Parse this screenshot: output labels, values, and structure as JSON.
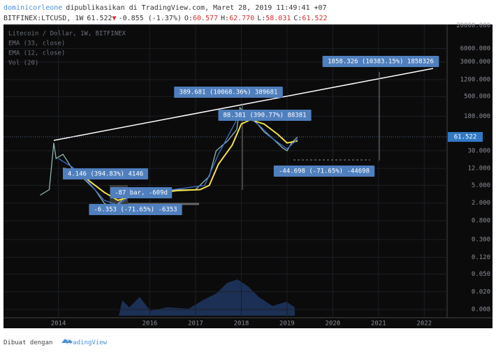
{
  "header": {
    "author": "dominicorleone",
    "published": "dipublikasikan di TradingView.com, Maret 28, 2019 11:49:41 +07",
    "symbol": "BITFINEX:LTCUSD, 1W",
    "last": "61.522",
    "arrow": "▼",
    "change": "-0.855 (-1.37%)",
    "ohlc": [
      {
        "label": "O:",
        "value": "60.577"
      },
      {
        "label": "H:",
        "value": "62.770"
      },
      {
        "label": "L:",
        "value": "58.031"
      },
      {
        "label": "C:",
        "value": "61.522"
      }
    ]
  },
  "footer": {
    "text": "Dibuat dengan",
    "brand": "TradingView"
  },
  "chart_data": {
    "type": "line",
    "log_scale": true,
    "grid": true,
    "volume_label": "Vol (20)",
    "last_price": {
      "value": 61.522,
      "label": "61.522"
    },
    "series": [
      {
        "name": "Litecoin / Dollar, 1W, BITFINEX",
        "color": "#8fb7ad",
        "x": [
          2013.6,
          2013.8,
          2013.9,
          2013.95,
          2014.1,
          2014.3,
          2014.5,
          2014.8,
          2015.0,
          2015.2,
          2015.5,
          2015.8,
          2016.2,
          2016.6,
          2017.0,
          2017.3,
          2017.45,
          2017.7,
          2017.9,
          2017.97,
          2018.1,
          2018.3,
          2018.5,
          2018.7,
          2018.9,
          2019.0,
          2019.1,
          2019.23
        ],
        "values": [
          3,
          4,
          45,
          20,
          25,
          12,
          8,
          4,
          2,
          1.5,
          3,
          3,
          3.5,
          4,
          4,
          8,
          30,
          50,
          90,
          280,
          200,
          140,
          80,
          55,
          35,
          30,
          45,
          61.522
        ]
      },
      {
        "name": "EMA (33, close)",
        "color": "#f5e04c",
        "x": [
          2014.1,
          2014.4,
          2014.7,
          2015.0,
          2015.3,
          2015.6,
          2016.0,
          2016.6,
          2017.1,
          2017.3,
          2017.5,
          2017.8,
          2018.0,
          2018.2,
          2018.5,
          2018.8,
          2019.0,
          2019.23
        ],
        "values": [
          12,
          11,
          6,
          3.5,
          2.3,
          2.8,
          3.2,
          3.8,
          4,
          5,
          15,
          40,
          120,
          150,
          120,
          70,
          45,
          50
        ]
      },
      {
        "name": "EMA (12, close)",
        "color": "#3f6fd0",
        "x": [
          2014.0,
          2014.3,
          2014.6,
          2015.0,
          2015.3,
          2015.6,
          2016.5,
          2017.2,
          2017.5,
          2017.9,
          2018.1,
          2018.4,
          2018.7,
          2019.0,
          2019.23
        ],
        "values": [
          20,
          13,
          7,
          2.3,
          1.8,
          3,
          4,
          5,
          25,
          150,
          190,
          110,
          55,
          33,
          55
        ]
      }
    ],
    "annotations": [
      "1858.326 (10383.15%) 1858326",
      "389.681 (10068.36%) 389681",
      "88.381 (390.77%) 88381",
      "4.146 (394.83%) 4146",
      "-87 bar, -609d",
      "-6.353 (-71.65%) -6353",
      "-44.698 (-71.65%) -44698"
    ],
    "xlim": [
      2012.8,
      2022.5
    ],
    "xticks": [
      2014,
      2016,
      2017,
      2018,
      2019,
      2020,
      2021,
      2022
    ],
    "ylim": [
      0.0052,
      21000
    ],
    "yticks": [
      {
        "value": 20000,
        "label": "20000.000"
      },
      {
        "value": 6000,
        "label": "6000.000"
      },
      {
        "value": 3000,
        "label": "3000.000"
      },
      {
        "value": 1200,
        "label": "1200.000"
      },
      {
        "value": 500,
        "label": "500.000"
      },
      {
        "value": 180,
        "label": "180.000"
      },
      {
        "value": 30,
        "label": "30.000"
      },
      {
        "value": 12,
        "label": "12.000"
      },
      {
        "value": 5,
        "label": "5.000"
      },
      {
        "value": 2,
        "label": "2.000"
      },
      {
        "value": 0.8,
        "label": "0.800"
      },
      {
        "value": 0.3,
        "label": "0.300"
      },
      {
        "value": 0.12,
        "label": "0.120"
      },
      {
        "value": 0.05,
        "label": "0.050"
      },
      {
        "value": 0.02,
        "label": "0.020"
      },
      {
        "value": 0.008,
        "label": "0.008"
      }
    ]
  }
}
